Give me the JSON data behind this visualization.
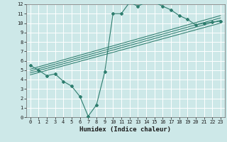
{
  "xlabel": "Humidex (Indice chaleur)",
  "background_color": "#cde8e8",
  "grid_color": "#ffffff",
  "line_color": "#2e7d6e",
  "xlim": [
    -0.5,
    23.5
  ],
  "ylim": [
    0,
    12
  ],
  "xticks": [
    0,
    1,
    2,
    3,
    4,
    5,
    6,
    7,
    8,
    9,
    10,
    11,
    12,
    13,
    14,
    15,
    16,
    17,
    18,
    19,
    20,
    21,
    22,
    23
  ],
  "yticks": [
    0,
    1,
    2,
    3,
    4,
    5,
    6,
    7,
    8,
    9,
    10,
    11,
    12
  ],
  "main_line_x": [
    0,
    1,
    2,
    3,
    4,
    5,
    6,
    7,
    8,
    9,
    10,
    11,
    12,
    13,
    14,
    15,
    16,
    17,
    18,
    19,
    20,
    21,
    22,
    23
  ],
  "main_line_y": [
    5.5,
    5.0,
    4.4,
    4.6,
    3.8,
    3.3,
    2.2,
    0.1,
    1.3,
    4.8,
    11.0,
    11.0,
    12.2,
    11.8,
    12.2,
    12.2,
    11.8,
    11.4,
    10.8,
    10.4,
    9.8,
    10.0,
    10.1,
    10.2
  ],
  "reg_lines": [
    {
      "x": [
        0,
        23
      ],
      "y": [
        4.5,
        10.0
      ]
    },
    {
      "x": [
        0,
        23
      ],
      "y": [
        4.7,
        10.3
      ]
    },
    {
      "x": [
        0,
        23
      ],
      "y": [
        4.9,
        10.55
      ]
    },
    {
      "x": [
        0,
        23
      ],
      "y": [
        5.1,
        10.8
      ]
    }
  ],
  "tick_fontsize": 5.0,
  "xlabel_fontsize": 6.5
}
